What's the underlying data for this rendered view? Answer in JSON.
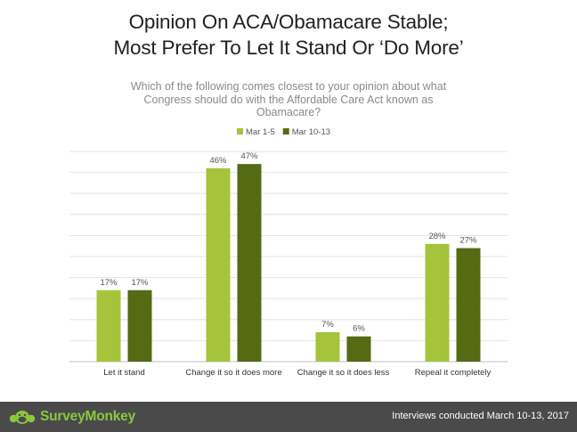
{
  "title_line1": "Opinion On ACA/Obamacare Stable;",
  "title_line2": "Most Prefer To Let It Stand Or ‘Do More’",
  "question_lines": [
    "Which of the following comes closest to your opinion about what",
    "Congress should do with the Affordable Care Act known as",
    "Obamacare?"
  ],
  "colors": {
    "series1": "#a5c33b",
    "series2": "#546a13",
    "footer": "#4a4a4a",
    "brand": "#8dc63f"
  },
  "chart_data": {
    "type": "bar",
    "categories": [
      "Let it stand",
      "Change it so it does more",
      "Change it so it does less",
      "Repeal it completely"
    ],
    "series": [
      {
        "name": "Mar 1-5",
        "values": [
          17,
          46,
          7,
          28
        ],
        "labels": [
          "17%",
          "46%",
          "7%",
          "28%"
        ]
      },
      {
        "name": "Mar 10-13",
        "values": [
          17,
          47,
          6,
          27
        ],
        "labels": [
          "17%",
          "47%",
          "6%",
          "27%"
        ]
      }
    ],
    "ylim": [
      0,
      50
    ],
    "grid": true,
    "legend_position": "top-center"
  },
  "footer": {
    "brand": "SurveyMonkey",
    "note": "Interviews conducted March 10-13, 2017",
    "logo_icon": "surveymonkey-logo-icon"
  }
}
